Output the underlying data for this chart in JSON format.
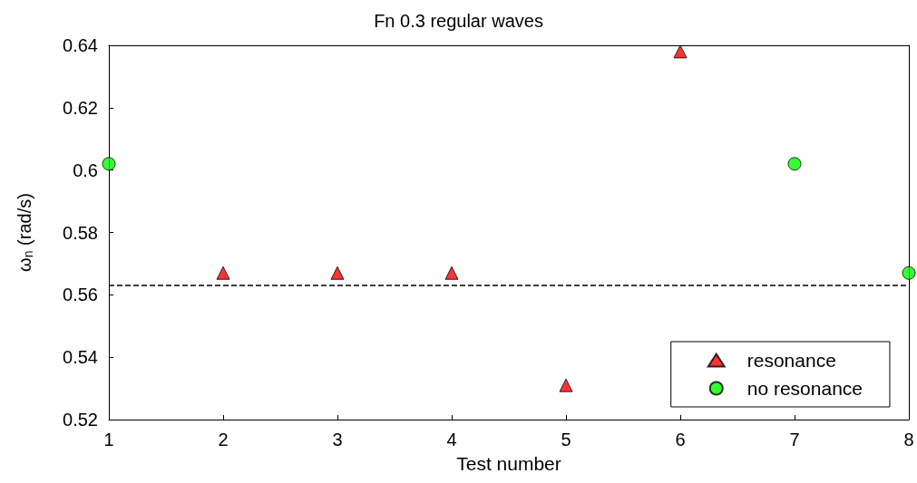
{
  "chart_data": {
    "type": "scatter",
    "title": "Fn 0.3 regular waves",
    "xlabel": "Test number",
    "ylabel": "ω$_{n}$ (rad/s)",
    "xlim": [
      1,
      8
    ],
    "xticks": [
      1,
      2,
      3,
      4,
      5,
      6,
      7,
      8
    ],
    "ylim": [
      0.52,
      0.64
    ],
    "yticks": [
      0.52,
      0.54,
      0.56,
      0.58,
      0.6,
      0.62,
      0.64
    ],
    "series": [
      {
        "name": "resonance",
        "color": "#ff0000",
        "marker": "triangle",
        "x": [
          2,
          3,
          4,
          5,
          6
        ],
        "values": [
          0.567,
          0.567,
          0.567,
          0.531,
          0.638
        ]
      },
      {
        "name": "no resonance",
        "color": "#00ff00",
        "marker": "circle",
        "x": [
          1,
          7,
          8
        ],
        "values": [
          0.602,
          0.602,
          0.567
        ]
      }
    ],
    "ref_lines": [
      {
        "axis": "y",
        "value": 0.563,
        "color": "#000000",
        "line_style": "dashed"
      }
    ],
    "legend": "bottom right",
    "grid": false
  }
}
